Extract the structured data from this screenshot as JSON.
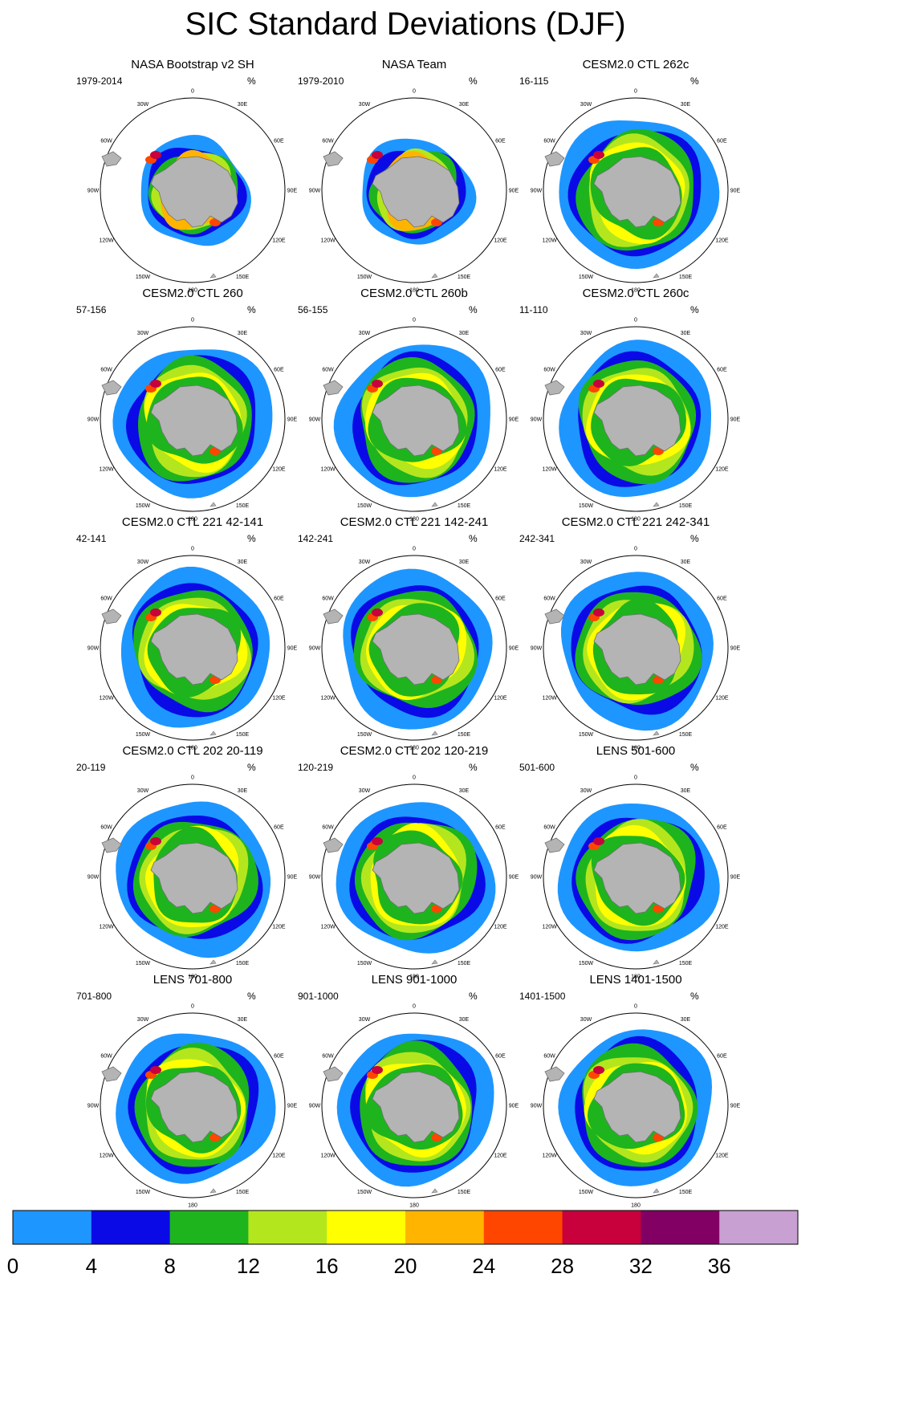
{
  "title": "SIC Standard Deviations (DJF)",
  "unit_label": "%",
  "longitude_labels": [
    "0",
    "30E",
    "60E",
    "90E",
    "120E",
    "150E",
    "180",
    "150W",
    "120W",
    "90W",
    "60W",
    "30W"
  ],
  "panels": [
    {
      "title": "NASA Bootstrap v2 SH",
      "range": "1979-2014"
    },
    {
      "title": "NASA Team",
      "range": "1979-2010"
    },
    {
      "title": "CESM2.0 CTL 262c",
      "range": "16-115"
    },
    {
      "title": "CESM2.0 CTL 260",
      "range": "57-156"
    },
    {
      "title": "CESM2.0 CTL 260b",
      "range": "56-155"
    },
    {
      "title": "CESM2.0 CTL 260c",
      "range": "11-110"
    },
    {
      "title": "CESM2.0 CTL 221 42-141",
      "range": "42-141"
    },
    {
      "title": "CESM2.0 CTL 221 142-241",
      "range": "142-241"
    },
    {
      "title": "CESM2.0 CTL 221 242-341",
      "range": "242-341"
    },
    {
      "title": "CESM2.0 CTL 202 20-119",
      "range": "20-119"
    },
    {
      "title": "CESM2.0 CTL 202 120-219",
      "range": "120-219"
    },
    {
      "title": "LENS 501-600",
      "range": "501-600"
    },
    {
      "title": "LENS 701-800",
      "range": "701-800"
    },
    {
      "title": "LENS 901-1000",
      "range": "901-1000"
    },
    {
      "title": "LENS 1401-1500",
      "range": "1401-1500"
    }
  ],
  "colors": {
    "land": "#b4b4b4",
    "land_outline": "#707070",
    "bins": [
      "#1e96ff",
      "#0a0ae6",
      "#1eb41e",
      "#b4e61e",
      "#ffff00",
      "#ffb400",
      "#ff4600",
      "#c8003c",
      "#820064",
      "#c8a0d2"
    ]
  },
  "colorbar": {
    "ticks": [
      "0",
      "4",
      "8",
      "12",
      "16",
      "20",
      "24",
      "28",
      "32",
      "36"
    ]
  }
}
